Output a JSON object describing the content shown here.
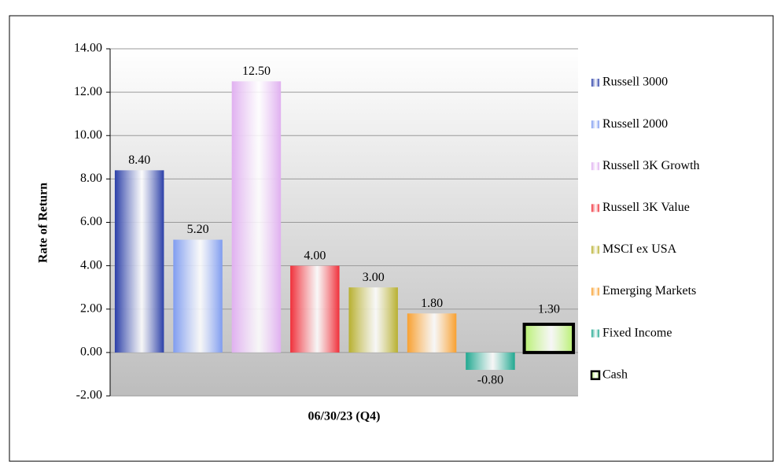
{
  "chart_data": {
    "type": "bar",
    "categories": [
      "06/30/23 (Q4)"
    ],
    "y_label": "Rate of Return",
    "ylim": [
      -2,
      14
    ],
    "yticks": [
      {
        "value": -2,
        "label": "-2.00"
      },
      {
        "value": 0,
        "label": "0.00"
      },
      {
        "value": 2,
        "label": "2.00"
      },
      {
        "value": 4,
        "label": "4.00"
      },
      {
        "value": 6,
        "label": "6.00"
      },
      {
        "value": 8,
        "label": "8.00"
      },
      {
        "value": 10,
        "label": "10.00"
      },
      {
        "value": 12,
        "label": "12.00"
      },
      {
        "value": 14,
        "label": "14.00"
      }
    ],
    "grid": true,
    "legend": "right",
    "series": [
      {
        "name": "Russell 3000",
        "color": "#2b3fa8",
        "values": [
          8.4
        ],
        "value_labels": [
          "8.40"
        ]
      },
      {
        "name": "Russell 2000",
        "color": "#7f9cf0",
        "values": [
          5.2
        ],
        "value_labels": [
          "5.20"
        ]
      },
      {
        "name": "Russell 3K Growth",
        "color": "#e0b0f0",
        "values": [
          12.5
        ],
        "value_labels": [
          "12.50"
        ]
      },
      {
        "name": "Russell 3K Value",
        "color": "#f0303a",
        "values": [
          4.0
        ],
        "value_labels": [
          "4.00"
        ]
      },
      {
        "name": "MSCI ex USA",
        "color": "#b8b030",
        "values": [
          3.0
        ],
        "value_labels": [
          "3.00"
        ]
      },
      {
        "name": "Emerging Markets",
        "color": "#f8a030",
        "values": [
          1.8
        ],
        "value_labels": [
          "1.80"
        ]
      },
      {
        "name": "Fixed Income",
        "color": "#20a890",
        "values": [
          -0.8
        ],
        "value_labels": [
          "-0.80"
        ]
      },
      {
        "name": "Cash",
        "color": "#b8f070",
        "edgecolor": "#000000",
        "values": [
          1.3
        ],
        "value_labels": [
          "1.30"
        ]
      }
    ]
  }
}
